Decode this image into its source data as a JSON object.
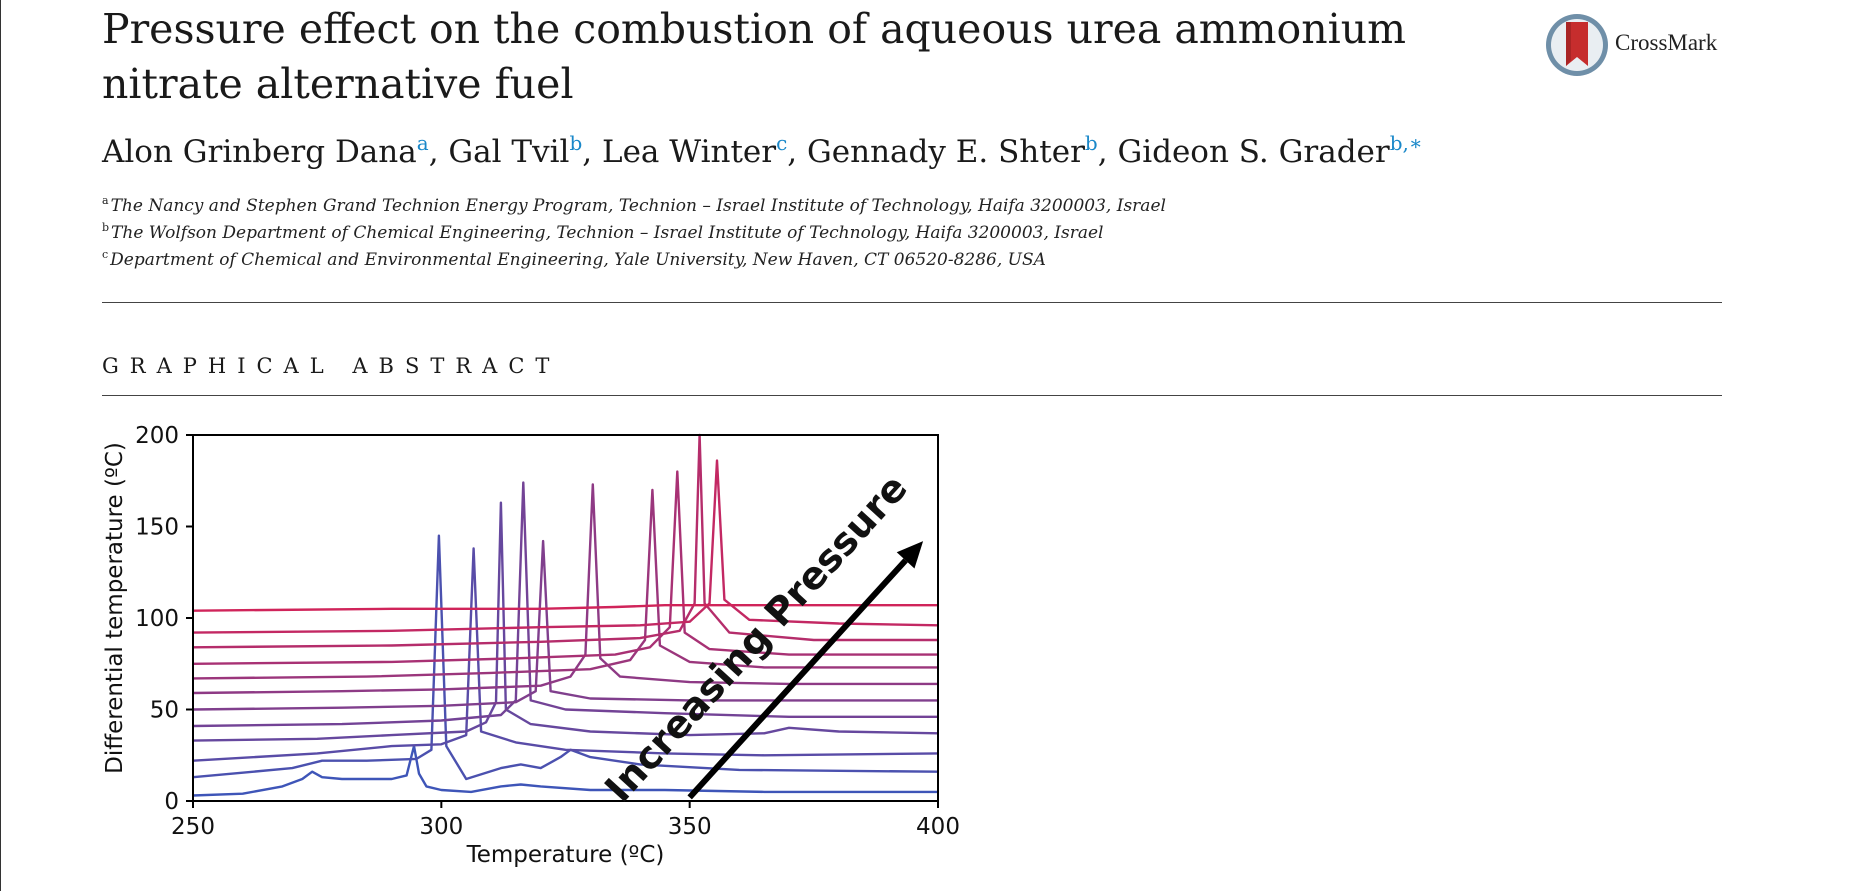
{
  "paper": {
    "title": "Pressure effect on the combustion of aqueous urea ammonium nitrate alternative fuel",
    "crossmark_label": "CrossMark",
    "authors": [
      {
        "name": "Alon Grinberg Dana",
        "sup": "a"
      },
      {
        "name": "Gal Tvil",
        "sup": "b"
      },
      {
        "name": "Lea Winter",
        "sup": "c"
      },
      {
        "name": "Gennady E. Shter",
        "sup": "b"
      },
      {
        "name": "Gideon S. Grader",
        "sup": "b,∗"
      }
    ],
    "author_separator": ", ",
    "affiliations": [
      {
        "sup": "a",
        "text": "The Nancy and Stephen Grand Technion Energy Program, Technion – Israel Institute of Technology, Haifa 3200003, Israel"
      },
      {
        "sup": "b",
        "text": "The Wolfson Department of Chemical Engineering, Technion – Israel Institute of Technology, Haifa 3200003, Israel"
      },
      {
        "sup": "c",
        "text": "Department of Chemical and Environmental Engineering, Yale University, New Haven, CT 06520-8286, USA"
      }
    ],
    "section_heading": "GRAPHICAL ABSTRACT"
  },
  "colors": {
    "link_blue": "#1a88c9",
    "crossmark_red": "#c62d2d",
    "low_pressure": "#3e55b8",
    "high_pressure": "#d0245a"
  },
  "chart_data": {
    "type": "line",
    "xlabel": "Temperature (ºC)",
    "ylabel": "Differential temperature (ºC)",
    "xlim": [
      250,
      400
    ],
    "ylim": [
      0,
      200
    ],
    "xticks": [
      250,
      300,
      350,
      400
    ],
    "yticks": [
      0,
      50,
      100,
      150,
      200
    ],
    "annotation": "Increasing Pressure",
    "arrow": {
      "from": [
        350,
        2
      ],
      "to": [
        397,
        142
      ]
    },
    "series": [
      {
        "points": [
          [
            250,
            3
          ],
          [
            260,
            4
          ],
          [
            268,
            8
          ],
          [
            272,
            12
          ],
          [
            274,
            16
          ],
          [
            276,
            13
          ],
          [
            280,
            12
          ],
          [
            290,
            12
          ],
          [
            293,
            14
          ],
          [
            294.5,
            30
          ],
          [
            295.5,
            15
          ],
          [
            297,
            8
          ],
          [
            300,
            6
          ],
          [
            306,
            5
          ],
          [
            312,
            8
          ],
          [
            316,
            9
          ],
          [
            320,
            8
          ],
          [
            330,
            6
          ],
          [
            345,
            6
          ],
          [
            365,
            5
          ],
          [
            400,
            5
          ]
        ]
      },
      {
        "points": [
          [
            250,
            13
          ],
          [
            270,
            18
          ],
          [
            276,
            22
          ],
          [
            285,
            22
          ],
          [
            295,
            23
          ],
          [
            298,
            28
          ],
          [
            299.5,
            145
          ],
          [
            301,
            30
          ],
          [
            305,
            12
          ],
          [
            312,
            18
          ],
          [
            316,
            20
          ],
          [
            320,
            18
          ],
          [
            324,
            24
          ],
          [
            326,
            28
          ],
          [
            330,
            24
          ],
          [
            340,
            20
          ],
          [
            360,
            17
          ],
          [
            400,
            16
          ]
        ]
      },
      {
        "points": [
          [
            250,
            22
          ],
          [
            275,
            26
          ],
          [
            290,
            30
          ],
          [
            300,
            31
          ],
          [
            305,
            36
          ],
          [
            306.5,
            138
          ],
          [
            308,
            38
          ],
          [
            315,
            32
          ],
          [
            325,
            28
          ],
          [
            345,
            26
          ],
          [
            365,
            25
          ],
          [
            400,
            26
          ]
        ]
      },
      {
        "points": [
          [
            250,
            33
          ],
          [
            275,
            34
          ],
          [
            290,
            36
          ],
          [
            305,
            38
          ],
          [
            309,
            43
          ],
          [
            311,
            54
          ],
          [
            312,
            163
          ],
          [
            313,
            50
          ],
          [
            318,
            42
          ],
          [
            330,
            38
          ],
          [
            350,
            36
          ],
          [
            365,
            37
          ],
          [
            370,
            40
          ],
          [
            380,
            38
          ],
          [
            400,
            37
          ]
        ]
      },
      {
        "points": [
          [
            250,
            41
          ],
          [
            280,
            42
          ],
          [
            300,
            44
          ],
          [
            312,
            47
          ],
          [
            315,
            55
          ],
          [
            316.5,
            174
          ],
          [
            318,
            55
          ],
          [
            325,
            50
          ],
          [
            345,
            48
          ],
          [
            370,
            46
          ],
          [
            400,
            46
          ]
        ]
      },
      {
        "points": [
          [
            250,
            50
          ],
          [
            280,
            51
          ],
          [
            300,
            52
          ],
          [
            315,
            54
          ],
          [
            319,
            60
          ],
          [
            320.5,
            142
          ],
          [
            322,
            60
          ],
          [
            330,
            56
          ],
          [
            350,
            55
          ],
          [
            370,
            55
          ],
          [
            400,
            55
          ]
        ]
      },
      {
        "points": [
          [
            250,
            59
          ],
          [
            280,
            60
          ],
          [
            300,
            61
          ],
          [
            320,
            63
          ],
          [
            326,
            68
          ],
          [
            329,
            80
          ],
          [
            330.5,
            173
          ],
          [
            332,
            78
          ],
          [
            336,
            68
          ],
          [
            350,
            65
          ],
          [
            370,
            64
          ],
          [
            400,
            64
          ]
        ]
      },
      {
        "points": [
          [
            250,
            67
          ],
          [
            285,
            68
          ],
          [
            310,
            70
          ],
          [
            330,
            72
          ],
          [
            338,
            77
          ],
          [
            341,
            88
          ],
          [
            342.5,
            170
          ],
          [
            344,
            85
          ],
          [
            350,
            76
          ],
          [
            365,
            73
          ],
          [
            400,
            73
          ]
        ]
      },
      {
        "points": [
          [
            250,
            75
          ],
          [
            290,
            76
          ],
          [
            315,
            78
          ],
          [
            335,
            80
          ],
          [
            342,
            84
          ],
          [
            346,
            95
          ],
          [
            347.5,
            180
          ],
          [
            349,
            92
          ],
          [
            354,
            83
          ],
          [
            370,
            80
          ],
          [
            400,
            80
          ]
        ]
      },
      {
        "points": [
          [
            250,
            84
          ],
          [
            290,
            85
          ],
          [
            320,
            87
          ],
          [
            340,
            89
          ],
          [
            348,
            93
          ],
          [
            351,
            108
          ],
          [
            352,
            200
          ],
          [
            353,
            108
          ],
          [
            358,
            92
          ],
          [
            375,
            88
          ],
          [
            400,
            88
          ]
        ]
      },
      {
        "points": [
          [
            250,
            92
          ],
          [
            290,
            93
          ],
          [
            320,
            95
          ],
          [
            340,
            96
          ],
          [
            350,
            98
          ],
          [
            354,
            108
          ],
          [
            355.5,
            186
          ],
          [
            357,
            110
          ],
          [
            362,
            99
          ],
          [
            380,
            97
          ],
          [
            400,
            96
          ]
        ]
      },
      {
        "points": [
          [
            250,
            104
          ],
          [
            290,
            105
          ],
          [
            320,
            105
          ],
          [
            335,
            106
          ],
          [
            345,
            107
          ],
          [
            355,
            107
          ],
          [
            370,
            107
          ],
          [
            400,
            107
          ]
        ]
      }
    ]
  }
}
